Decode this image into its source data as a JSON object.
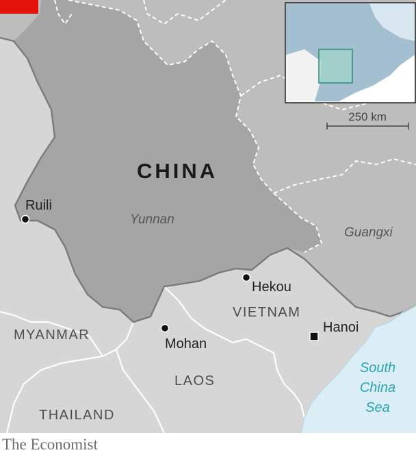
{
  "countries": {
    "china": "CHINA",
    "myanmar": "MYANMAR",
    "vietnam": "VIETNAM",
    "laos": "LAOS",
    "thailand": "THAILAND"
  },
  "regions": {
    "yunnan": "Yunnan",
    "guangxi": "Guangxi"
  },
  "cities": {
    "ruili": "Ruili",
    "hekou": "Hekou",
    "mohan": "Mohan",
    "hanoi": "Hanoi"
  },
  "sea": {
    "line1": "South",
    "line2": "China",
    "line3": "Sea"
  },
  "scale_label": "250 km",
  "credit": "The Economist",
  "colors": {
    "china_land": "#b9b9b9",
    "yunnan_land": "#a3a3a3",
    "other_land": "#d6d6d6",
    "sea": "#dbeef5",
    "accent_red": "#e3120b",
    "sea_label": "#2aa3b3",
    "inset_highlight": "#2e8b7a"
  }
}
